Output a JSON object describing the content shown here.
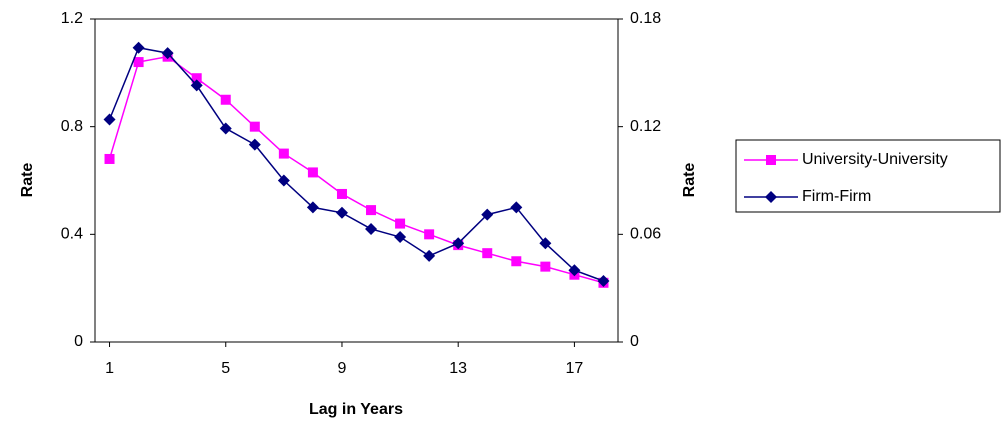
{
  "chart_data": {
    "type": "line",
    "x_label": "Lag in Years",
    "y_label": "Rate",
    "y2_label": "Rate",
    "x": [
      1,
      2,
      3,
      4,
      5,
      6,
      7,
      8,
      9,
      10,
      11,
      12,
      13,
      14,
      15,
      16,
      17,
      18
    ],
    "xlim": [
      0.5,
      18.5
    ],
    "xticks": [
      1,
      5,
      9,
      13,
      17
    ],
    "ylim": [
      0,
      1.2
    ],
    "yticks": [
      0,
      0.4,
      0.8,
      1.2
    ],
    "y2lim": [
      0,
      0.18
    ],
    "y2ticks": [
      0,
      0.06,
      0.12,
      0.18
    ],
    "grid": false,
    "legend": "right",
    "series": [
      {
        "name": "University-University",
        "color": "#ff00ff",
        "marker": "square",
        "values": [
          0.68,
          1.04,
          1.06,
          0.98,
          0.9,
          0.8,
          0.7,
          0.63,
          0.55,
          0.49,
          0.44,
          0.4,
          0.36,
          0.33,
          0.3,
          0.28,
          0.25,
          0.22
        ]
      },
      {
        "name": "Firm-Firm",
        "color": "#000080",
        "marker": "diamond",
        "axis": "y2",
        "values": [
          0.124,
          0.164,
          0.161,
          0.143,
          0.119,
          0.11,
          0.09,
          0.075,
          0.072,
          0.063,
          0.0585,
          0.048,
          0.055,
          0.071,
          0.075,
          0.055,
          0.04,
          0.034
        ]
      }
    ]
  }
}
